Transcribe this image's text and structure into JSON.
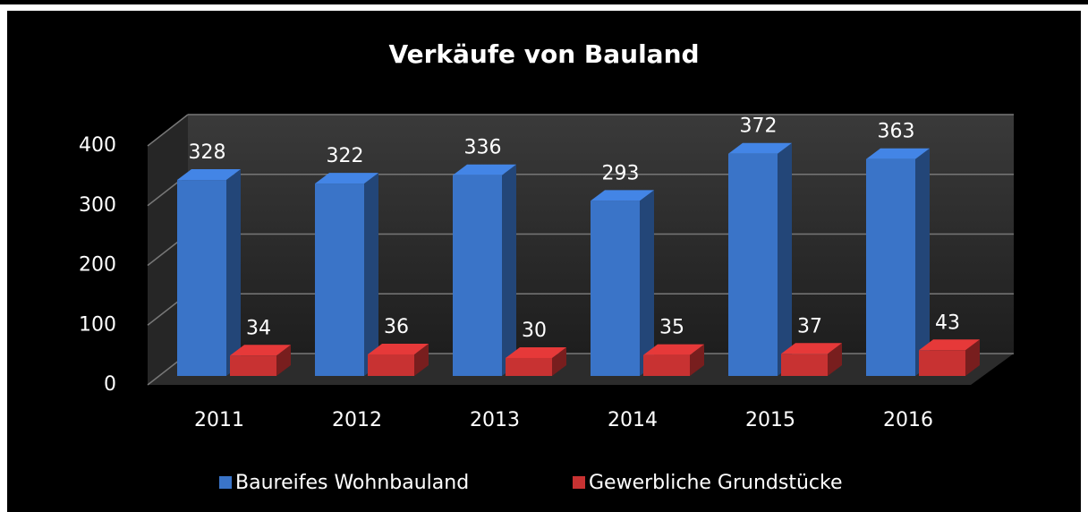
{
  "chart_data": {
    "type": "bar3d",
    "title": "Verkäufe von Bauland",
    "categories": [
      "2011",
      "2012",
      "2013",
      "2014",
      "2015",
      "2016"
    ],
    "series": [
      {
        "name": "Baureifes Wohnbauland",
        "color": "#3a74c8",
        "values": [
          328,
          322,
          336,
          293,
          372,
          363
        ]
      },
      {
        "name": "Gewerbliche Grundstücke",
        "color": "#c83232",
        "values": [
          34,
          36,
          30,
          35,
          37,
          43
        ]
      }
    ],
    "ylim": [
      0,
      400
    ],
    "yticks": [
      0,
      100,
      200,
      300,
      400
    ],
    "grid": true,
    "legend": "bottom"
  }
}
